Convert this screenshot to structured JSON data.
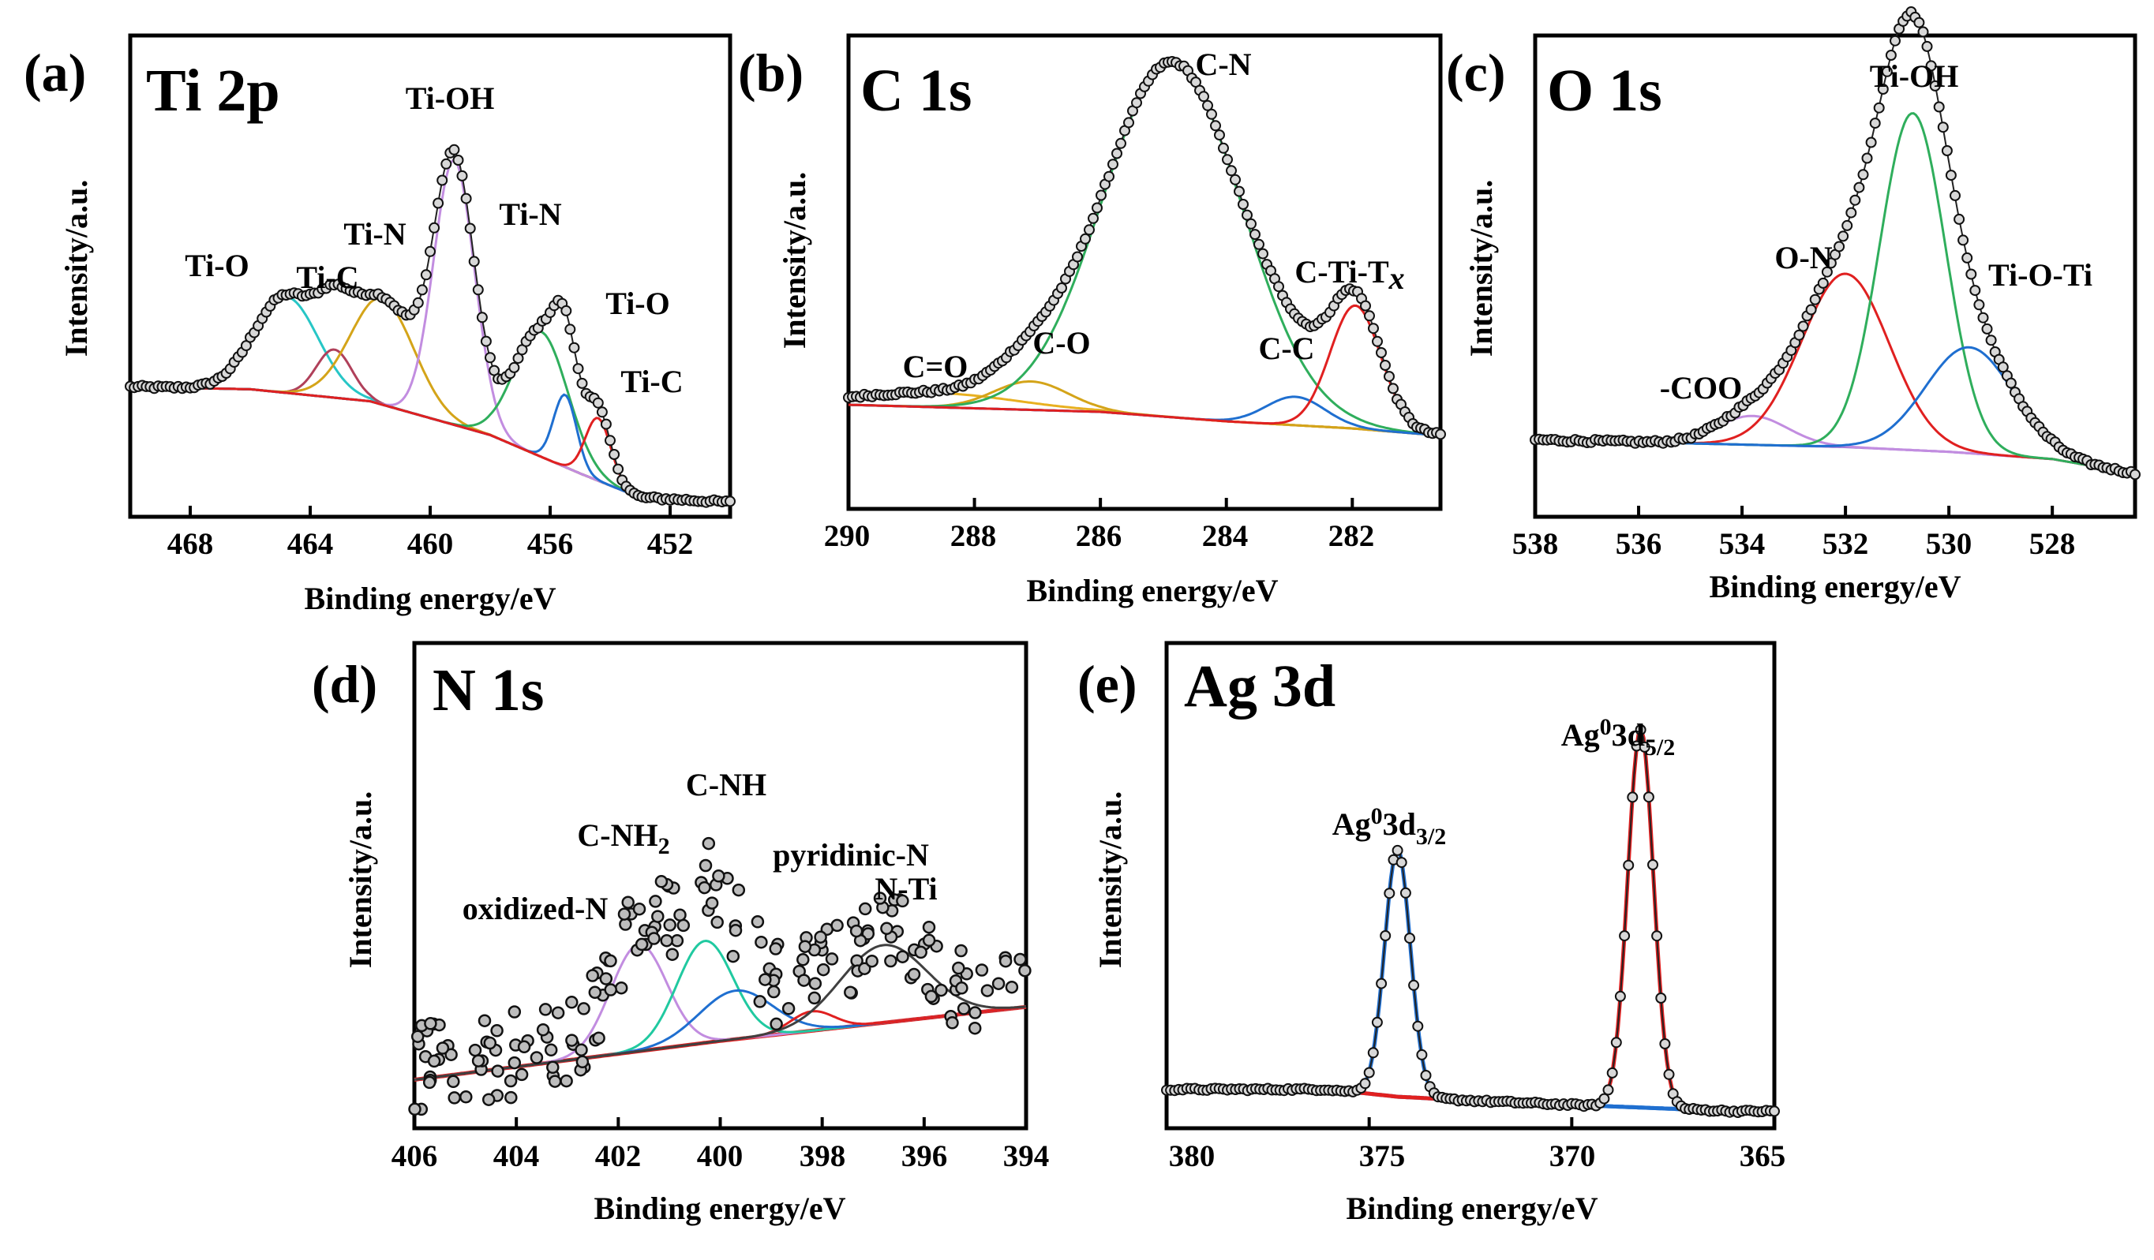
{
  "figure": {
    "x_axis_label": "Binding energy/eV",
    "y_axis_label": "Intensity/a.u."
  },
  "chart_data": [
    {
      "type": "line",
      "panel": "(a)",
      "title": "Ti 2p",
      "xlabel": "Binding energy/eV",
      "ylabel": "Intensity/a.u.",
      "xlim": [
        470,
        450
      ],
      "ylim": [
        0,
        100
      ],
      "xticks": [
        "468",
        "464",
        "460",
        "456",
        "452"
      ],
      "baseline": [
        [
          470,
          27
        ],
        [
          466,
          26.5
        ],
        [
          462,
          24
        ],
        [
          458,
          17
        ],
        [
          455,
          9
        ],
        [
          453,
          4
        ],
        [
          450,
          3
        ]
      ],
      "components": [
        {
          "name": "Ti-O",
          "center": 464.8,
          "fwhm": 2.5,
          "height": 20,
          "color": "#27c6c6"
        },
        {
          "name": "Ti-C",
          "center": 463.2,
          "fwhm": 1.4,
          "height": 10,
          "color": "#b0405a"
        },
        {
          "name": "Ti-N",
          "center": 461.6,
          "fwhm": 2.5,
          "height": 22,
          "color": "#d4a419"
        },
        {
          "name": "Ti-OH",
          "center": 459.2,
          "fwhm": 1.6,
          "height": 55,
          "color": "#c28de0"
        },
        {
          "name": "Ti-N",
          "center": 456.3,
          "fwhm": 2.1,
          "height": 26,
          "color": "#2fae5c"
        },
        {
          "name": "Ti-O",
          "center": 455.5,
          "fwhm": 0.9,
          "height": 15,
          "color": "#1f6fd0"
        },
        {
          "name": "Ti-C",
          "center": 454.4,
          "fwhm": 1.0,
          "height": 13,
          "color": "#e02020"
        }
      ],
      "annotations": [
        {
          "text": "Ti-O",
          "x": 466.6,
          "y": 60
        },
        {
          "text": "Ti-C",
          "x": 463.2,
          "y": 58
        },
        {
          "text": "Ti-N",
          "x": 461.6,
          "y": 69
        },
        {
          "text": "Ti-OH",
          "x": 459.6,
          "y": 98
        },
        {
          "text": "Ti-N",
          "x": 456.8,
          "y": 73
        },
        {
          "text": "Ti-O",
          "x": 453.3,
          "y": 51
        },
        {
          "text": "Ti-C",
          "x": 452.7,
          "y": 33
        }
      ]
    },
    {
      "type": "line",
      "panel": "(b)",
      "title": "C 1s",
      "xlabel": "Binding energy/eV",
      "ylabel": "Intensity/a.u.",
      "xlim": [
        290,
        280.6
      ],
      "ylim": [
        0,
        100
      ],
      "xticks": [
        "290",
        "288",
        "286",
        "284",
        "282"
      ],
      "baseline": [
        [
          290,
          22
        ],
        [
          286,
          20.5
        ],
        [
          284,
          18.5
        ],
        [
          282,
          17
        ],
        [
          280.6,
          15.5
        ]
      ],
      "components": [
        {
          "name": "C=O",
          "center": 288.6,
          "fwhm": 3.0,
          "height": 3,
          "color": "#e8b020"
        },
        {
          "name": "C-O",
          "center": 287.1,
          "fwhm": 1.4,
          "height": 6,
          "color": "#d4a419"
        },
        {
          "name": "C-N",
          "center": 284.85,
          "fwhm": 2.6,
          "height": 75,
          "color": "#2fae5c"
        },
        {
          "name": "C-C",
          "center": 282.9,
          "fwhm": 1.1,
          "height": 6,
          "color": "#1f6fd0"
        },
        {
          "name": "C-Ti-Tx",
          "center": 281.95,
          "fwhm": 0.95,
          "height": 26,
          "color": "#e02020"
        }
      ],
      "annotations": [
        {
          "text": "C=O",
          "x": 288.5,
          "y": 32
        },
        {
          "text": "C-O",
          "x": 286.9,
          "y": 41
        },
        {
          "text": "C-N",
          "x": 284.6,
          "y": 97
        },
        {
          "text": "C-C",
          "x": 282.6,
          "y": 40
        },
        {
          "text": "C-Ti-T",
          "x": 281.7,
          "y": 58
        }
      ]
    },
    {
      "type": "line",
      "panel": "(c)",
      "title": "O 1s",
      "xlabel": "Binding energy/eV",
      "ylabel": "Intensity/a.u.",
      "xlim": [
        538,
        526.4
      ],
      "ylim": [
        0,
        100
      ],
      "xticks": [
        "538",
        "536",
        "534",
        "532",
        "530",
        "528"
      ],
      "baseline": [
        [
          538,
          16
        ],
        [
          534,
          15
        ],
        [
          532,
          14.5
        ],
        [
          530,
          13.5
        ],
        [
          528,
          12
        ],
        [
          526.4,
          9
        ]
      ],
      "components": [
        {
          "name": "-COO",
          "center": 533.8,
          "fwhm": 1.6,
          "height": 6,
          "color": "#c28de0"
        },
        {
          "name": "O-N",
          "center": 532.0,
          "fwhm": 2.0,
          "height": 36,
          "color": "#e02020"
        },
        {
          "name": "Ti-OH",
          "center": 530.7,
          "fwhm": 1.5,
          "height": 70,
          "color": "#2fae5c"
        },
        {
          "name": "Ti-O-Ti",
          "center": 529.6,
          "fwhm": 2.0,
          "height": 22,
          "color": "#1f6fd0"
        }
      ],
      "annotations": [
        {
          "text": "-COO",
          "x": 534.6,
          "y": 38
        },
        {
          "text": "O-N",
          "x": 532.8,
          "y": 64
        },
        {
          "text": "Ti-OH",
          "x": 530.8,
          "y": 98
        },
        {
          "text": "Ti-O-Ti",
          "x": 528.1,
          "y": 56
        }
      ]
    },
    {
      "type": "scatter",
      "panel": "(d)",
      "title": "N 1s",
      "xlabel": "Binding energy/eV",
      "ylabel": "Intensity/a.u.",
      "xlim": [
        406,
        394
      ],
      "ylim": [
        0,
        100
      ],
      "xticks": [
        "406",
        "404",
        "402",
        "400",
        "398",
        "396",
        "394"
      ],
      "baseline": [
        [
          406,
          10
        ],
        [
          400,
          18
        ],
        [
          394,
          25
        ]
      ],
      "components": [
        {
          "name": "oxidized-N",
          "center": 401.6,
          "fwhm": 1.3,
          "height": 22,
          "color": "#c28de0"
        },
        {
          "name": "C-NH2",
          "center": 400.3,
          "fwhm": 1.3,
          "height": 21,
          "color": "#20c9a0"
        },
        {
          "name": "C-NH",
          "center": 399.7,
          "fwhm": 1.7,
          "height": 10,
          "color": "#1f6fd0"
        },
        {
          "name": "pyridinic-N",
          "center": 398.2,
          "fwhm": 1.0,
          "height": 4,
          "color": "#e02020"
        },
        {
          "name": "N-Ti",
          "center": 396.8,
          "fwhm": 2.0,
          "height": 16,
          "color": "#404040"
        }
      ],
      "annotations": [
        {
          "text": "oxidized-N",
          "x": 403.6,
          "y": 59
        },
        {
          "text": "C-NH",
          "x": 402.4,
          "y": 74
        },
        {
          "text": "C-NH",
          "x": 399.8,
          "y": 90
        },
        {
          "text": "pyridinic-N",
          "x": 397.6,
          "y": 71
        },
        {
          "text": "N-Ti",
          "x": 396.8,
          "y": 61
        }
      ]
    },
    {
      "type": "line",
      "panel": "(e)",
      "title": "Ag 3d",
      "xlabel": "Binding energy/eV",
      "ylabel": "Intensity/a.u.",
      "xlim": [
        380,
        365
      ],
      "ylim": [
        0,
        100
      ],
      "xticks": [
        "380",
        "375",
        "370",
        "365"
      ],
      "baseline": [
        [
          381,
          8
        ],
        [
          376,
          8
        ],
        [
          374.3,
          6.5
        ],
        [
          372,
          5.5
        ],
        [
          369,
          4.5
        ],
        [
          366,
          3.5
        ],
        [
          364.5,
          3.5
        ]
      ],
      "components": [
        {
          "name": "Ag0 3d3/2",
          "center": 374.3,
          "fwhm": 0.75,
          "height": 51,
          "color": "#1f6fd0"
        },
        {
          "name": "Ag0 3d5/2",
          "center": 368.3,
          "fwhm": 0.75,
          "height": 78,
          "color": "#e02020"
        }
      ],
      "annotations": [
        {
          "text": "Ag",
          "x": 374.3,
          "y": 62
        },
        {
          "text": "Ag",
          "x": 368.3,
          "y": 91
        }
      ]
    }
  ]
}
